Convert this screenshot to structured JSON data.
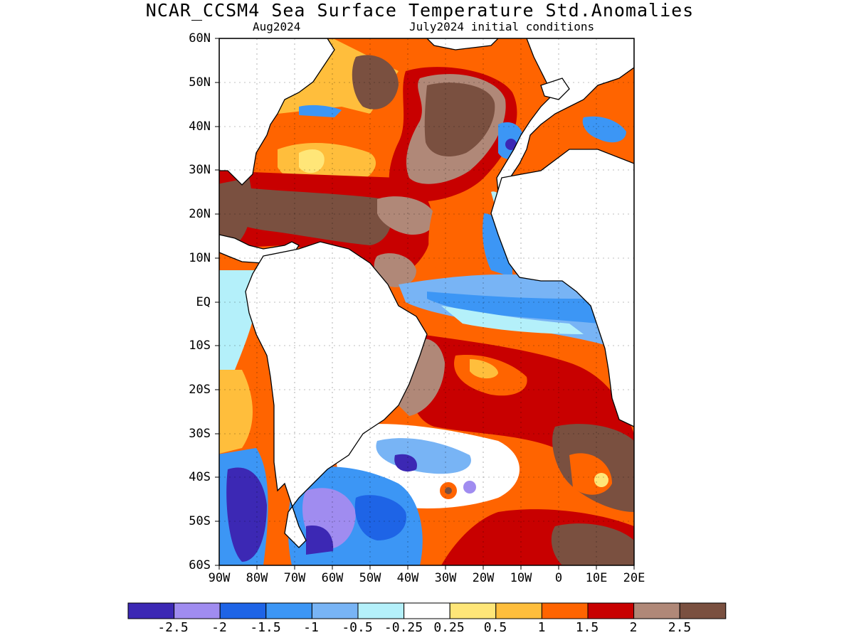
{
  "title": "NCAR_CCSM4 Sea Surface Temperature Std.Anomalies",
  "subtitle_left": "Aug2024",
  "subtitle_right": "July2024 initial conditions",
  "lat_labels": [
    "60N",
    "50N",
    "40N",
    "30N",
    "20N",
    "10N",
    "EQ",
    "10S",
    "20S",
    "30S",
    "40S",
    "50S",
    "60S"
  ],
  "lon_labels": [
    "90W",
    "80W",
    "70W",
    "60W",
    "50W",
    "40W",
    "30W",
    "20W",
    "10W",
    "0",
    "10E",
    "20E"
  ],
  "colorbar": {
    "colors": [
      "#3c28b4",
      "#a08cf0",
      "#1e64e6",
      "#3c96f5",
      "#78b4f5",
      "#b4f0fa",
      "#ffffff",
      "#ffe678",
      "#ffbe3c",
      "#ff6400",
      "#c80000",
      "#b08878",
      "#7a5040"
    ],
    "labels": [
      "-2.5",
      "-2",
      "-1.5",
      "-1",
      "-0.5",
      "-0.25",
      "0.25",
      "0.5",
      "1",
      "1.5",
      "2",
      "2.5"
    ]
  }
}
